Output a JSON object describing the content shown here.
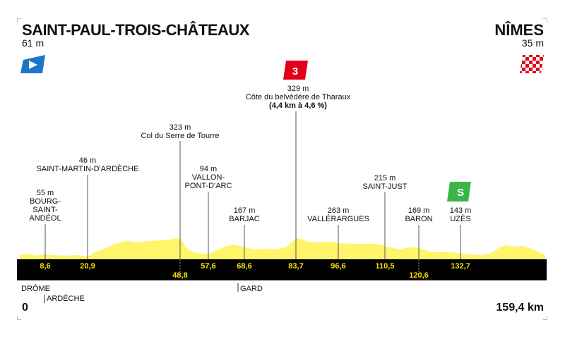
{
  "start": {
    "name": "SAINT-PAUL-TROIS-CHÂTEAUX",
    "altitude": "61 m"
  },
  "finish": {
    "name": "NÎMES",
    "altitude": "35 m"
  },
  "colors": {
    "profile": "#fff46a",
    "band": "#000000",
    "km_text": "#ffe400",
    "start_flag": "#1d74c9",
    "climb_badge": "#e2001a",
    "sprint_badge": "#3cb44a"
  },
  "waypoints": [
    {
      "id": "bourg",
      "lines": [
        "55 m",
        "BOURG-",
        "SAINT-",
        "ANDÉOL"
      ],
      "km": "8,6",
      "km_row": "top"
    },
    {
      "id": "saint-martin",
      "lines": [
        "46 m",
        "SAINT-MARTIN-D'ARDÈCHE"
      ],
      "km": "20,9",
      "km_row": "top"
    },
    {
      "id": "col-serre",
      "lines": [
        "323 m",
        "Col du Serre de Tourre"
      ],
      "km": "48,8",
      "km_row": "bottom"
    },
    {
      "id": "vallon",
      "lines": [
        "94 m",
        "VALLON-",
        "PONT-D'ARC"
      ],
      "km": "57,6",
      "km_row": "top"
    },
    {
      "id": "barjac",
      "lines": [
        "167 m",
        "BARJAC"
      ],
      "km": "68,6",
      "km_row": "top"
    },
    {
      "id": "tharaux",
      "lines": [
        "329 m",
        "Côte du belvédère de Tharaux"
      ],
      "bold_line": "(4,4 km à 4,6 %)",
      "km": "83,7",
      "km_row": "top",
      "badge": "3"
    },
    {
      "id": "vallerargues",
      "lines": [
        "263 m",
        "VALLÉRARGUES"
      ],
      "km": "96,6",
      "km_row": "top"
    },
    {
      "id": "saint-just",
      "lines": [
        "215 m",
        "SAINT-JUST"
      ],
      "km": "110,5",
      "km_row": "top"
    },
    {
      "id": "baron",
      "lines": [
        "169 m",
        "BARON"
      ],
      "km": "120,6",
      "km_row": "bottom"
    },
    {
      "id": "uzes",
      "lines": [
        "143 m",
        "UZÈS"
      ],
      "km": "132,7",
      "km_row": "top",
      "badge": "S"
    }
  ],
  "regions": {
    "drome": "DRÔME",
    "ardeche": "ARDÈCHE",
    "gard": "GARD"
  },
  "distance": {
    "start": "0",
    "end": "159,4 km"
  },
  "icons": {
    "start": "start-flag-icon",
    "finish": "checkered-flag-icon",
    "climb": "climb-category-icon",
    "sprint": "sprint-icon"
  }
}
